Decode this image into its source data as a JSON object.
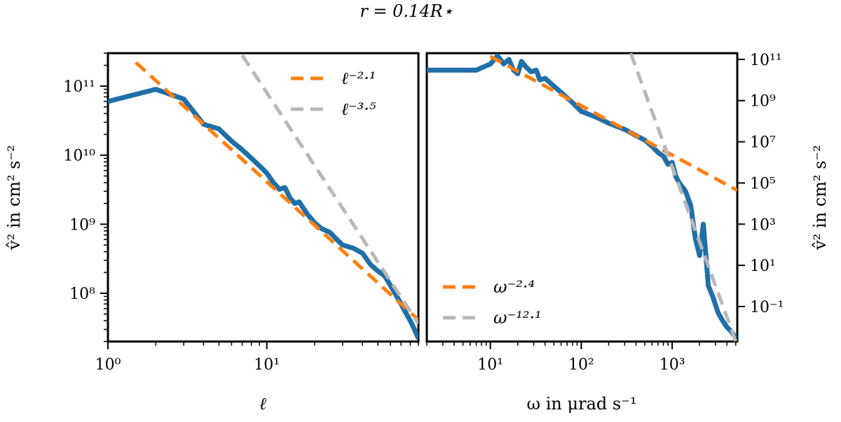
{
  "figure": {
    "suptitle": "r = 0.14R⋆"
  },
  "colors": {
    "data": "#1f6fa8",
    "fit_orange": "#ff7f0e",
    "fit_grey": "#b8b8b8"
  },
  "chart_data": [
    {
      "type": "line",
      "name": "left-panel",
      "x_scale": "log",
      "y_scale": "log",
      "xlabel": "ℓ",
      "ylabel": "v̂² in cm² s⁻²",
      "xlim": [
        1,
        90
      ],
      "ylim": [
        20000000.0,
        300000000000.0
      ],
      "x_ticks": [
        {
          "value": 1,
          "label": "10⁰"
        },
        {
          "value": 10,
          "label": "10¹"
        }
      ],
      "y_ticks": [
        {
          "value": 100000000.0,
          "label": "10⁸"
        },
        {
          "value": 1000000000.0,
          "label": "10⁹"
        },
        {
          "value": 10000000000.0,
          "label": "10¹⁰"
        },
        {
          "value": 100000000000.0,
          "label": "10¹¹"
        }
      ],
      "legend": {
        "position": "upper right"
      },
      "series": [
        {
          "style": "data",
          "x": [
            1,
            2,
            3,
            4,
            5,
            6,
            7,
            8,
            9,
            10,
            11,
            12,
            13,
            14,
            15,
            16,
            18,
            20,
            22,
            25,
            28,
            30,
            35,
            40,
            45,
            50,
            55,
            60,
            65,
            70,
            75,
            80,
            85,
            90
          ],
          "y": [
            60000000000.0,
            90000000000.0,
            65000000000.0,
            28000000000.0,
            24000000000.0,
            16000000000.0,
            12000000000.0,
            9000000000.0,
            7000000000.0,
            5500000000.0,
            4000000000.0,
            3200000000.0,
            3400000000.0,
            2400000000.0,
            2000000000.0,
            2100000000.0,
            1400000000.0,
            1050000000.0,
            870000000.0,
            760000000.0,
            580000000.0,
            500000000.0,
            450000000.0,
            380000000.0,
            260000000.0,
            210000000.0,
            180000000.0,
            130000000.0,
            95000000.0,
            70000000.0,
            52000000.0,
            40000000.0,
            30000000.0,
            22000000.0
          ]
        },
        {
          "name": "ℓ⁻²·¹",
          "style": "fit_orange",
          "x": [
            1.5,
            90
          ],
          "y": [
            220000000000.0,
            41300000.0
          ]
        },
        {
          "name": "ℓ⁻³·⁵",
          "style": "fit_grey",
          "x": [
            7,
            90
          ],
          "y": [
            280000000000.0,
            36300000.0
          ]
        }
      ]
    },
    {
      "type": "line",
      "name": "right-panel",
      "x_scale": "log",
      "y_scale": "log",
      "xlabel": "ω in μrad s⁻¹",
      "ylabel": "v̂² in cm² s⁻²",
      "xlim": [
        2,
        5200
      ],
      "ylim": [
        0.002,
        200000000000.0
      ],
      "x_ticks": [
        {
          "value": 10,
          "label": "10¹"
        },
        {
          "value": 100,
          "label": "10²"
        },
        {
          "value": 1000,
          "label": "10³"
        }
      ],
      "y_ticks": [
        {
          "value": 0.1,
          "label": "10⁻¹"
        },
        {
          "value": 10,
          "label": "10¹"
        },
        {
          "value": 1000,
          "label": "10³"
        },
        {
          "value": 100000.0,
          "label": "10⁵"
        },
        {
          "value": 10000000.0,
          "label": "10⁷"
        },
        {
          "value": 1000000000.0,
          "label": "10⁹"
        },
        {
          "value": 100000000000.0,
          "label": "10¹¹"
        }
      ],
      "legend": {
        "position": "lower left"
      },
      "series": [
        {
          "style": "data",
          "x": [
            2,
            5,
            7,
            10,
            12,
            14,
            16,
            18,
            20,
            22,
            25,
            28,
            32,
            35,
            40,
            50,
            60,
            80,
            100,
            150,
            200,
            300,
            400,
            500,
            600,
            700,
            800,
            900,
            1000,
            1100,
            1200,
            1400,
            1600,
            1800,
            2000,
            2200,
            2500,
            2800,
            3200,
            3600,
            4000,
            4500,
            5000
          ],
          "y": [
            30000000000.0,
            30000000000.0,
            30000000000.0,
            60000000000.0,
            150000000000.0,
            60000000000.0,
            100000000000.0,
            30000000000.0,
            20000000000.0,
            80000000000.0,
            40000000000.0,
            25000000000.0,
            30000000000.0,
            10000000000.0,
            12000000000.0,
            5000000000.0,
            2500000000.0,
            800000000.0,
            300000000.0,
            150000000.0,
            80000000.0,
            40000000.0,
            20000000.0,
            12000000.0,
            6000000.0,
            3000000.0,
            2000000.0,
            800000.0,
            1000000.0,
            200000.0,
            100000.0,
            40000.0,
            8000.0,
            200,
            30,
            1000.0,
            1,
            0.3,
            0.05,
            0.02,
            0.01,
            0.006,
            0.003
          ]
        },
        {
          "name": "ω⁻²·⁴",
          "style": "fit_orange",
          "x": [
            10,
            5200
          ],
          "y": [
            140000000000.0,
            43600.0
          ]
        },
        {
          "name": "ω⁻¹²·¹",
          "style": "fit_grey",
          "x": [
            350,
            5200
          ],
          "y": [
            200000000000.0,
            0.0013
          ]
        }
      ]
    }
  ]
}
